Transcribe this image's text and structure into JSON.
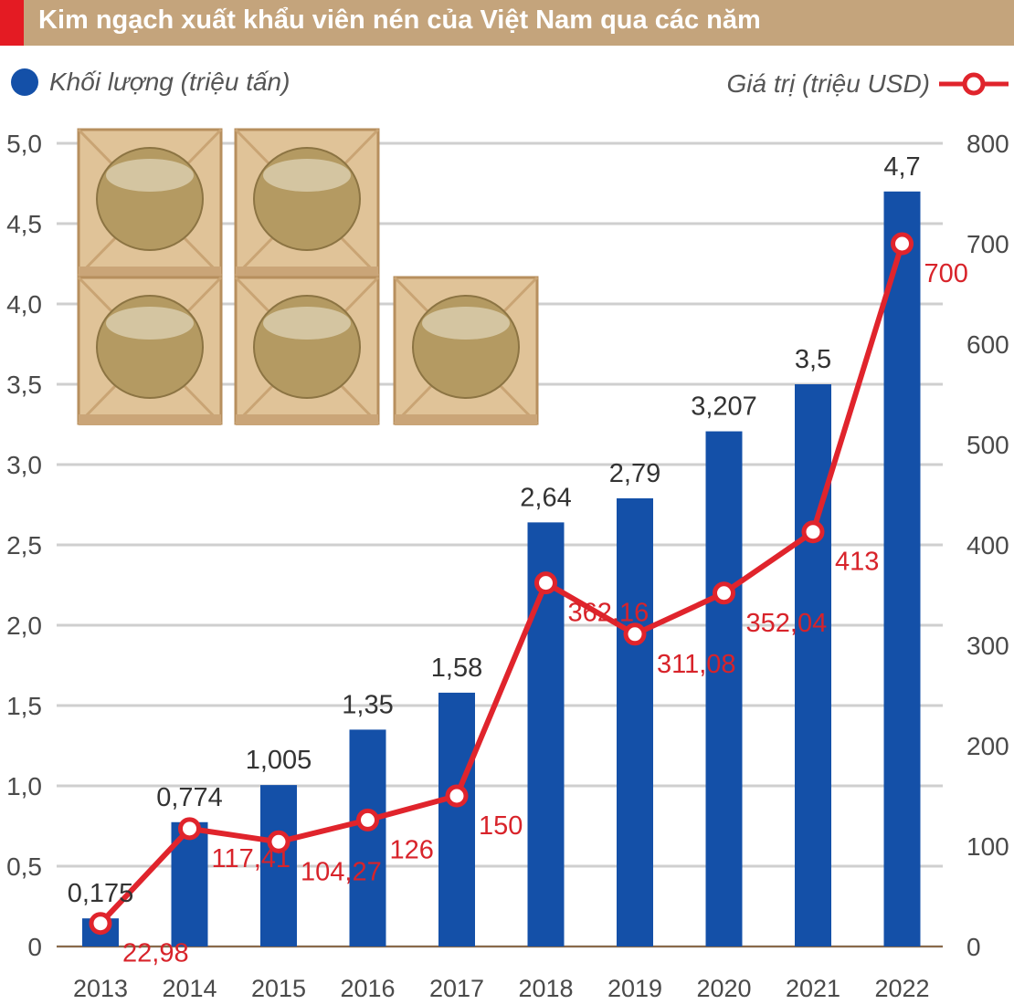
{
  "header": {
    "title": "Kim ngạch xuất khẩu viên nén của Việt Nam qua các năm"
  },
  "legend": {
    "volume_label": "Khối lượng (triệu tấn)",
    "value_label": "Giá trị (triệu USD)"
  },
  "colors": {
    "title_bg": "#c4a47c",
    "accent": "#e41b23",
    "bar": "#1450a8",
    "line": "#e0242c",
    "grid": "#cfcfcf"
  },
  "image_icon": "wood-pellet-crates-illustration",
  "chart_data": {
    "type": "bar",
    "categories": [
      "2013",
      "2014",
      "2015",
      "2016",
      "2017",
      "2018",
      "2019",
      "2020",
      "2021",
      "2022"
    ],
    "series": [
      {
        "name": "Khối lượng (triệu tấn)",
        "type": "bar",
        "axis": "left",
        "values": [
          0.175,
          0.774,
          1.005,
          1.35,
          1.58,
          2.64,
          2.79,
          3.207,
          3.5,
          4.7
        ],
        "labels": [
          "0,175",
          "0,774",
          "1,005",
          "1,35",
          "1,58",
          "2,64",
          "2,79",
          "3,207",
          "3,5",
          "4,7"
        ]
      },
      {
        "name": "Giá trị (triệu USD)",
        "type": "line",
        "axis": "right",
        "values": [
          22.98,
          117.41,
          104.27,
          126,
          150,
          362.16,
          311.08,
          352.04,
          413,
          700
        ],
        "labels": [
          "22,98",
          "117,41",
          "104,27",
          "126",
          "150",
          "362,16",
          "311,08",
          "352,04",
          "413",
          "700"
        ]
      }
    ],
    "left_axis": {
      "ylim": [
        0,
        5
      ],
      "ticks": [
        "0",
        "0,5",
        "1,0",
        "1,5",
        "2,0",
        "2,5",
        "3,0",
        "3,5",
        "4,0",
        "4,5",
        "5,0"
      ]
    },
    "right_axis": {
      "ylim": [
        0,
        800
      ],
      "ticks": [
        "0",
        "100",
        "200",
        "300",
        "400",
        "500",
        "600",
        "700",
        "800"
      ]
    },
    "grid": true,
    "legend_position": "top"
  }
}
